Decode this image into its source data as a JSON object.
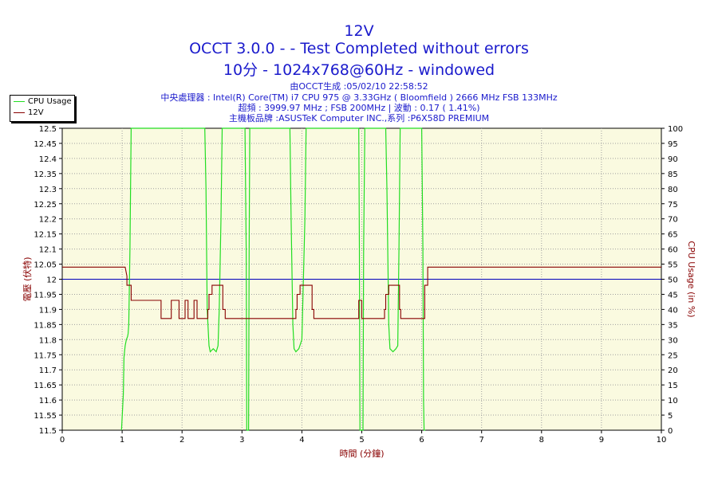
{
  "title": "12V",
  "subtitle1": "OCCT 3.0.0 -  - Test Completed without errors",
  "subtitle2": "10分 - 1024x768@60Hz - windowed",
  "info": [
    "由OCCT生成 :05/02/10 22:58:52",
    "中央處理器 : Intel(R) Core(TM) i7 CPU 975 @ 3.33GHz ( Bloomfield ) 2666 MHz FSB 133MHz",
    "超頻 : 3999.97 MHz ; FSB 200MHz | 波動 : 0.17 ( 1.41%)",
    "主機板品牌 :ASUSTeK Computer INC.,系列 :P6X58D PREMIUM"
  ],
  "colors": {
    "plot_bg": "#fafae0",
    "grid": "#a0a0a0",
    "cpu": "#22dd22",
    "voltage": "#880000",
    "reference": "#0000bb",
    "title": "#1a1acc"
  },
  "chart_data": {
    "type": "line",
    "xlabel": "時間 (分鐘)",
    "ylabel_left": "電壓 (伏特)",
    "ylabel_right": "CPU Usage (in %)",
    "xlim": [
      0,
      10
    ],
    "ylim_left": [
      11.5,
      12.5
    ],
    "ylim_right": [
      0,
      100
    ],
    "x_ticks": [
      "0",
      "1",
      "2",
      "3",
      "4",
      "5",
      "6",
      "7",
      "8",
      "9",
      "10"
    ],
    "y_left_ticks": [
      "11.5",
      "11.55",
      "11.6",
      "11.65",
      "11.7",
      "11.75",
      "11.8",
      "11.85",
      "11.9",
      "11.95",
      "12",
      "12.05",
      "12.1",
      "12.15",
      "12.2",
      "12.25",
      "12.3",
      "12.35",
      "12.4",
      "12.45",
      "12.5"
    ],
    "y_right_ticks": [
      "0",
      "5",
      "10",
      "15",
      "20",
      "25",
      "30",
      "35",
      "40",
      "45",
      "50",
      "55",
      "60",
      "65",
      "70",
      "75",
      "80",
      "85",
      "90",
      "95",
      "100"
    ],
    "grid": true,
    "legend": "top-left",
    "reference_line": 12.0,
    "series": [
      {
        "name": "CPU Usage",
        "axis": "right",
        "x": [
          0.99,
          1.02,
          1.03,
          1.04,
          1.05,
          1.07,
          1.09,
          1.1,
          1.11,
          1.13,
          1.15,
          1.16,
          1.17,
          1.2,
          1.2,
          2.38,
          2.4,
          2.42,
          2.45,
          2.47,
          2.52,
          2.57,
          2.6,
          2.62,
          2.65,
          2.67,
          2.69,
          2.7,
          3.05,
          3.07,
          3.08,
          3.09,
          3.1,
          3.11,
          3.12,
          3.13,
          3.8,
          3.82,
          3.85,
          3.87,
          3.9,
          3.95,
          4.0,
          4.05,
          4.07,
          4.1,
          4.11,
          4.13,
          4.13,
          4.95,
          4.96,
          4.97,
          4.98,
          4.99,
          5.0,
          5.01,
          5.02,
          5.03,
          5.05,
          5.05,
          5.4,
          5.42,
          5.45,
          5.47,
          5.52,
          5.57,
          5.6,
          5.62,
          5.64,
          5.66,
          5.67,
          6.0,
          6.02,
          6.03,
          6.04,
          6.06
        ],
        "values": [
          0,
          12,
          24,
          26,
          28,
          30,
          31,
          32,
          35,
          60,
          100,
          100,
          100,
          100,
          100,
          100,
          80,
          40,
          28,
          26,
          27,
          26,
          28,
          40,
          70,
          100,
          100,
          100,
          100,
          60,
          0,
          0,
          0,
          0,
          60,
          100,
          100,
          70,
          35,
          27,
          26,
          27,
          30,
          70,
          100,
          100,
          100,
          100,
          100,
          100,
          60,
          0,
          0,
          0,
          0,
          0,
          0,
          60,
          100,
          100,
          100,
          80,
          35,
          27,
          26,
          27,
          28,
          60,
          100,
          100,
          100,
          100,
          60,
          10,
          0,
          0
        ]
      },
      {
        "name": "12V",
        "axis": "left",
        "x": [
          0,
          1.05,
          1.08,
          1.08,
          1.15,
          1.15,
          1.25,
          1.25,
          1.65,
          1.65,
          1.82,
          1.82,
          1.95,
          1.95,
          2.05,
          2.05,
          2.1,
          2.1,
          2.2,
          2.2,
          2.25,
          2.25,
          2.43,
          2.43,
          2.45,
          2.45,
          2.5,
          2.5,
          2.68,
          2.68,
          2.72,
          2.72,
          3.9,
          3.9,
          3.92,
          3.92,
          3.97,
          3.97,
          4.17,
          4.17,
          4.2,
          4.2,
          4.95,
          4.95,
          5.0,
          5.0,
          5.05,
          5.05,
          5.38,
          5.38,
          5.4,
          5.4,
          5.45,
          5.45,
          5.63,
          5.63,
          5.65,
          5.65,
          5.67,
          5.67,
          6.05,
          6.05,
          6.1,
          6.1,
          10
        ],
        "values": [
          12.04,
          12.04,
          12.01,
          11.98,
          11.98,
          11.93,
          11.93,
          11.93,
          11.93,
          11.87,
          11.87,
          11.93,
          11.93,
          11.87,
          11.87,
          11.93,
          11.93,
          11.87,
          11.87,
          11.93,
          11.93,
          11.87,
          11.87,
          11.9,
          11.9,
          11.95,
          11.95,
          11.98,
          11.98,
          11.9,
          11.9,
          11.87,
          11.87,
          11.9,
          11.9,
          11.95,
          11.95,
          11.98,
          11.98,
          11.9,
          11.9,
          11.87,
          11.87,
          11.93,
          11.93,
          11.87,
          11.87,
          11.87,
          11.87,
          11.9,
          11.9,
          11.95,
          11.95,
          11.98,
          11.98,
          11.9,
          11.9,
          11.87,
          11.87,
          11.87,
          11.87,
          11.98,
          11.98,
          12.04,
          12.04
        ]
      }
    ]
  }
}
